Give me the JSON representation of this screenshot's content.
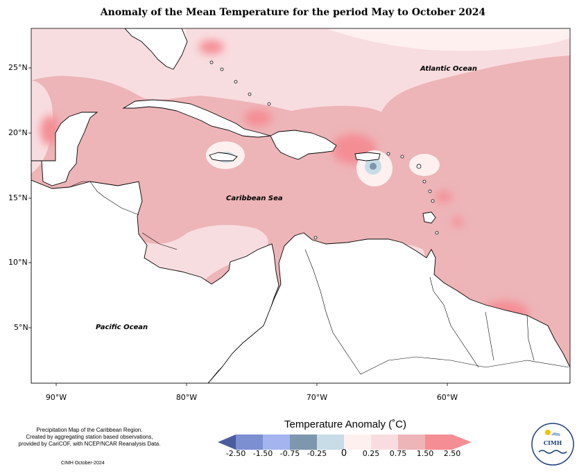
{
  "title": "Anomaly of the Mean Temperature for the period May to October 2024",
  "map": {
    "region": "Caribbean",
    "latitude_labels": [
      "25°N",
      "20°N",
      "15°N",
      "10°N",
      "5°N"
    ],
    "longitude_labels": [
      "90°W",
      "80°W",
      "70°W",
      "60°W"
    ],
    "ocean_labels": {
      "atlantic": "Atlantic Ocean",
      "caribbean": "Caribbean Sea",
      "pacific": "Pacific Ocean"
    },
    "colors": {
      "land_no_data": "#ffffff",
      "coastline": "#000000"
    }
  },
  "notes": {
    "line1": "Precipitation Map of the Caribbean Region.",
    "line2": "Created by aggregating station based observations,",
    "line3": "provided by CariCOF, with NCEP/NCAR Reanalysis Data.",
    "credit": "CIMH October-2024"
  },
  "legend": {
    "title": "Temperature Anomaly (˚C)",
    "bins": [
      {
        "color": "#4b5d9e"
      },
      {
        "color": "#7c8fd1"
      },
      {
        "color": "#a3b4ee"
      },
      {
        "color": "#7f97ad"
      },
      {
        "color": "#c7dce6"
      },
      {
        "color": "#fff0f0"
      },
      {
        "color": "#f8dde0"
      },
      {
        "color": "#edb5b8"
      },
      {
        "color": "#f48e94"
      }
    ],
    "tick_labels": [
      "-2.50",
      "-1.50",
      "-0.75",
      "-0.25",
      "0",
      "0.25",
      "0.75",
      "1.50",
      "2.50"
    ]
  },
  "logo": {
    "text": "CIMH"
  }
}
